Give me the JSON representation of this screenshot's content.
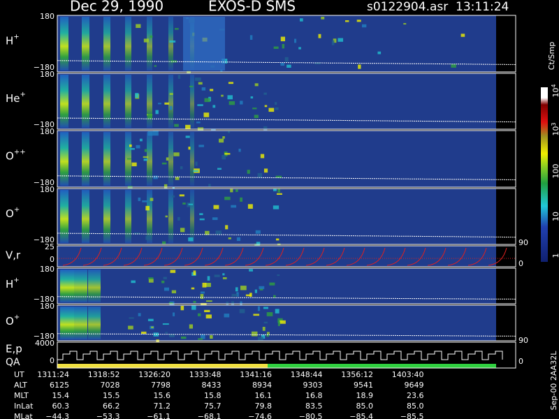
{
  "header": {
    "date": "Dec 29, 1990",
    "instrument": "EXOS-D SMS",
    "file": "s0122904.asr",
    "time": "13:11:24"
  },
  "panels": [
    {
      "label": "H",
      "charge": "+",
      "top": "180",
      "bottom": "−180"
    },
    {
      "label": "He",
      "charge": "+",
      "top": "180",
      "bottom": "−180"
    },
    {
      "label": "O",
      "charge": "++",
      "top": "180",
      "bottom": "−180"
    },
    {
      "label": "O",
      "charge": "+",
      "top": "180",
      "bottom": "−180"
    },
    {
      "label": "V,r",
      "top": "25",
      "bottom": "0"
    },
    {
      "label": "H",
      "charge": "+",
      "top": "180",
      "bottom": "−180"
    },
    {
      "label": "O",
      "charge": "+",
      "top": "180",
      "bottom": "−180"
    },
    {
      "label": "E,p",
      "sublabel": "QA",
      "top": "4000",
      "bottom": "0"
    }
  ],
  "right_axis": [
    "90",
    "0",
    "90",
    "0"
  ],
  "colorbar": {
    "unit": "Ct/Smp",
    "labels": [
      {
        "base": "10",
        "exp": "4"
      },
      {
        "base": "10",
        "exp": "3"
      },
      {
        "base": "100"
      },
      {
        "base": "10"
      },
      {
        "base": "1"
      }
    ]
  },
  "footer": "Sep-00  2AA32L",
  "table": {
    "rows": [
      {
        "name": "UT",
        "values": [
          "1311:24",
          "1318:52",
          "1326:20",
          "1333:48",
          "1341:16",
          "1348:44",
          "1356:12",
          "1403:40"
        ]
      },
      {
        "name": "ALT",
        "values": [
          "6125",
          "7028",
          "7798",
          "8433",
          "8934",
          "9303",
          "9541",
          "9649"
        ]
      },
      {
        "name": "MLT",
        "values": [
          "15.4",
          "15.5",
          "15.6",
          "15.8",
          "16.1",
          "16.8",
          "18.9",
          "23.6"
        ]
      },
      {
        "name": "InLat",
        "values": [
          "60.3",
          "66.2",
          "71.2",
          "75.7",
          "79.8",
          "83.5",
          "85.0",
          "85.0"
        ]
      },
      {
        "name": "MLat",
        "values": [
          "−44.3",
          "−53.3",
          "−61.1",
          "−68.1",
          "−74.6",
          "−80.5",
          "−85.4",
          "−85.5"
        ]
      }
    ]
  }
}
